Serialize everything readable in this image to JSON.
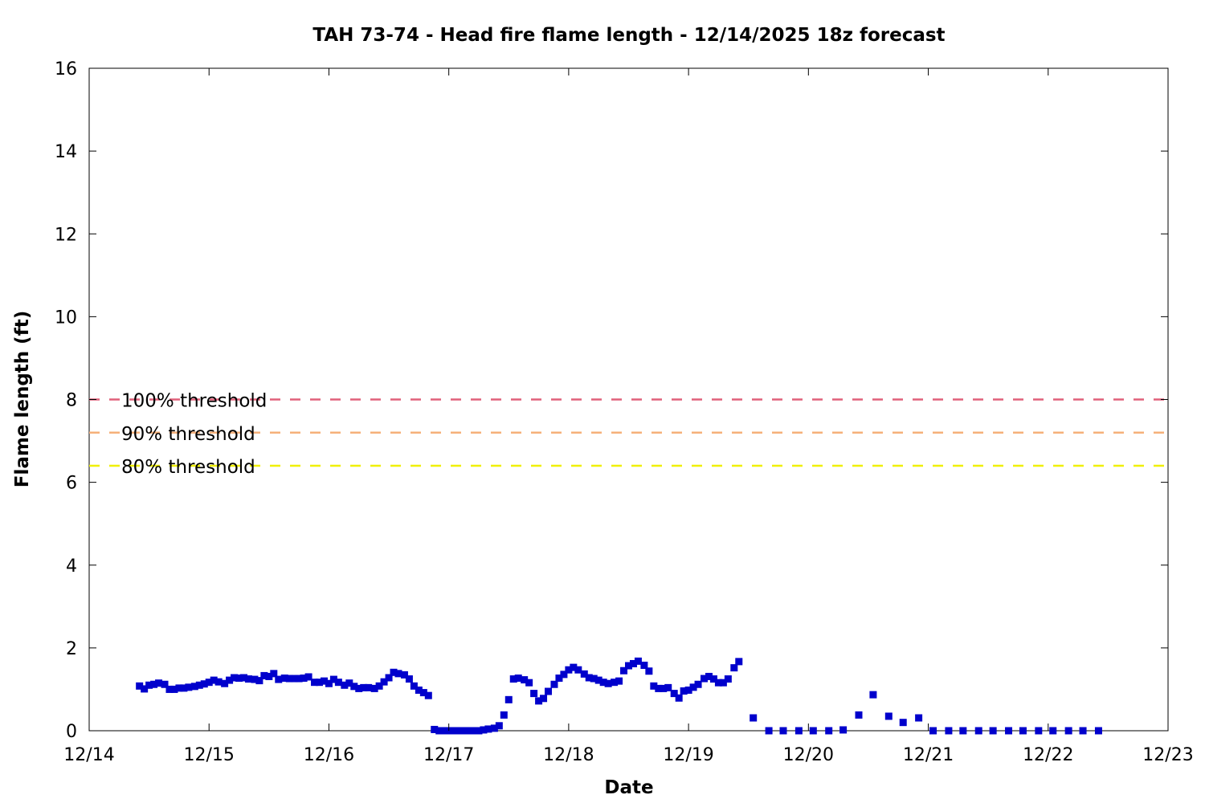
{
  "chart_data": {
    "type": "scatter",
    "title": "TAH 73-74 - Head fire flame length - 12/14/2025 18z forecast",
    "xlabel": "Date",
    "ylabel": "Flame length (ft)",
    "x_unit": "days since 12/14 00z",
    "xlim": [
      0,
      9
    ],
    "ylim": [
      0,
      16
    ],
    "x_ticks": [
      {
        "value": 0,
        "label": "12/14"
      },
      {
        "value": 1,
        "label": "12/15"
      },
      {
        "value": 2,
        "label": "12/16"
      },
      {
        "value": 3,
        "label": "12/17"
      },
      {
        "value": 4,
        "label": "12/18"
      },
      {
        "value": 5,
        "label": "12/19"
      },
      {
        "value": 6,
        "label": "12/20"
      },
      {
        "value": 7,
        "label": "12/21"
      },
      {
        "value": 8,
        "label": "12/22"
      },
      {
        "value": 9,
        "label": "12/23"
      }
    ],
    "y_ticks": [
      {
        "value": 0,
        "label": "0"
      },
      {
        "value": 2,
        "label": "2"
      },
      {
        "value": 4,
        "label": "4"
      },
      {
        "value": 6,
        "label": "6"
      },
      {
        "value": 8,
        "label": "8"
      },
      {
        "value": 10,
        "label": "10"
      },
      {
        "value": 12,
        "label": "12"
      },
      {
        "value": 14,
        "label": "14"
      },
      {
        "value": 16,
        "label": "16"
      }
    ],
    "grid": false,
    "thresholds": [
      {
        "label": "100% threshold",
        "value": 8.0,
        "color": "#e0607a"
      },
      {
        "label": "90% threshold",
        "value": 7.2,
        "color": "#f5b07a"
      },
      {
        "label": "80% threshold",
        "value": 6.4,
        "color": "#f0f000"
      }
    ],
    "series": [
      {
        "color": "#0000cc",
        "points": [
          [
            0.42,
            1.08
          ],
          [
            0.46,
            1.01
          ],
          [
            0.5,
            1.1
          ],
          [
            0.54,
            1.12
          ],
          [
            0.58,
            1.15
          ],
          [
            0.63,
            1.12
          ],
          [
            0.67,
            1.0
          ],
          [
            0.71,
            1.0
          ],
          [
            0.75,
            1.03
          ],
          [
            0.79,
            1.03
          ],
          [
            0.83,
            1.05
          ],
          [
            0.88,
            1.07
          ],
          [
            0.92,
            1.1
          ],
          [
            0.96,
            1.13
          ],
          [
            1.0,
            1.17
          ],
          [
            1.04,
            1.22
          ],
          [
            1.08,
            1.18
          ],
          [
            1.13,
            1.14
          ],
          [
            1.17,
            1.22
          ],
          [
            1.21,
            1.28
          ],
          [
            1.25,
            1.27
          ],
          [
            1.29,
            1.28
          ],
          [
            1.33,
            1.25
          ],
          [
            1.38,
            1.24
          ],
          [
            1.42,
            1.21
          ],
          [
            1.46,
            1.33
          ],
          [
            1.5,
            1.31
          ],
          [
            1.54,
            1.38
          ],
          [
            1.58,
            1.24
          ],
          [
            1.63,
            1.27
          ],
          [
            1.67,
            1.26
          ],
          [
            1.71,
            1.26
          ],
          [
            1.75,
            1.26
          ],
          [
            1.79,
            1.27
          ],
          [
            1.83,
            1.3
          ],
          [
            1.88,
            1.17
          ],
          [
            1.92,
            1.17
          ],
          [
            1.96,
            1.2
          ],
          [
            2.0,
            1.14
          ],
          [
            2.04,
            1.24
          ],
          [
            2.08,
            1.17
          ],
          [
            2.13,
            1.1
          ],
          [
            2.17,
            1.15
          ],
          [
            2.21,
            1.07
          ],
          [
            2.25,
            1.02
          ],
          [
            2.29,
            1.04
          ],
          [
            2.33,
            1.04
          ],
          [
            2.38,
            1.02
          ],
          [
            2.42,
            1.08
          ],
          [
            2.46,
            1.18
          ],
          [
            2.5,
            1.28
          ],
          [
            2.54,
            1.41
          ],
          [
            2.58,
            1.38
          ],
          [
            2.63,
            1.35
          ],
          [
            2.67,
            1.25
          ],
          [
            2.71,
            1.08
          ],
          [
            2.75,
            0.98
          ],
          [
            2.79,
            0.92
          ],
          [
            2.83,
            0.85
          ],
          [
            2.88,
            0.03
          ],
          [
            2.92,
            0.0
          ],
          [
            2.96,
            0.0
          ],
          [
            3.0,
            0.0
          ],
          [
            3.04,
            0.0
          ],
          [
            3.08,
            0.0
          ],
          [
            3.13,
            0.0
          ],
          [
            3.17,
            0.0
          ],
          [
            3.21,
            0.0
          ],
          [
            3.25,
            0.0
          ],
          [
            3.29,
            0.02
          ],
          [
            3.33,
            0.04
          ],
          [
            3.38,
            0.06
          ],
          [
            3.42,
            0.12
          ],
          [
            3.46,
            0.38
          ],
          [
            3.5,
            0.75
          ],
          [
            3.54,
            1.25
          ],
          [
            3.58,
            1.27
          ],
          [
            3.63,
            1.23
          ],
          [
            3.67,
            1.16
          ],
          [
            3.71,
            0.9
          ],
          [
            3.75,
            0.72
          ],
          [
            3.79,
            0.78
          ],
          [
            3.83,
            0.95
          ],
          [
            3.88,
            1.12
          ],
          [
            3.92,
            1.27
          ],
          [
            3.96,
            1.36
          ],
          [
            4.0,
            1.47
          ],
          [
            4.04,
            1.53
          ],
          [
            4.08,
            1.47
          ],
          [
            4.13,
            1.37
          ],
          [
            4.17,
            1.28
          ],
          [
            4.21,
            1.26
          ],
          [
            4.25,
            1.22
          ],
          [
            4.29,
            1.17
          ],
          [
            4.33,
            1.14
          ],
          [
            4.38,
            1.17
          ],
          [
            4.42,
            1.2
          ],
          [
            4.46,
            1.45
          ],
          [
            4.5,
            1.57
          ],
          [
            4.54,
            1.62
          ],
          [
            4.58,
            1.68
          ],
          [
            4.63,
            1.58
          ],
          [
            4.67,
            1.44
          ],
          [
            4.71,
            1.08
          ],
          [
            4.75,
            1.02
          ],
          [
            4.79,
            1.02
          ],
          [
            4.83,
            1.04
          ],
          [
            4.88,
            0.9
          ],
          [
            4.92,
            0.79
          ],
          [
            4.96,
            0.96
          ],
          [
            5.0,
            0.98
          ],
          [
            5.04,
            1.05
          ],
          [
            5.08,
            1.12
          ],
          [
            5.13,
            1.26
          ],
          [
            5.17,
            1.31
          ],
          [
            5.21,
            1.25
          ],
          [
            5.25,
            1.16
          ],
          [
            5.29,
            1.16
          ],
          [
            5.33,
            1.25
          ],
          [
            5.38,
            1.52
          ],
          [
            5.42,
            1.67
          ],
          [
            5.54,
            0.31
          ],
          [
            5.67,
            0.0
          ],
          [
            5.79,
            0.0
          ],
          [
            5.92,
            0.0
          ],
          [
            6.04,
            0.0
          ],
          [
            6.17,
            0.0
          ],
          [
            6.29,
            0.02
          ],
          [
            6.42,
            0.38
          ],
          [
            6.54,
            0.87
          ],
          [
            6.67,
            0.35
          ],
          [
            6.79,
            0.2
          ],
          [
            6.92,
            0.31
          ],
          [
            7.04,
            0.0
          ],
          [
            7.17,
            0.0
          ],
          [
            7.29,
            0.0
          ],
          [
            7.42,
            0.0
          ],
          [
            7.54,
            0.0
          ],
          [
            7.67,
            0.0
          ],
          [
            7.79,
            0.0
          ],
          [
            7.92,
            0.0
          ],
          [
            8.04,
            0.0
          ],
          [
            8.17,
            0.0
          ],
          [
            8.29,
            0.0
          ],
          [
            8.42,
            0.0
          ]
        ]
      }
    ]
  }
}
